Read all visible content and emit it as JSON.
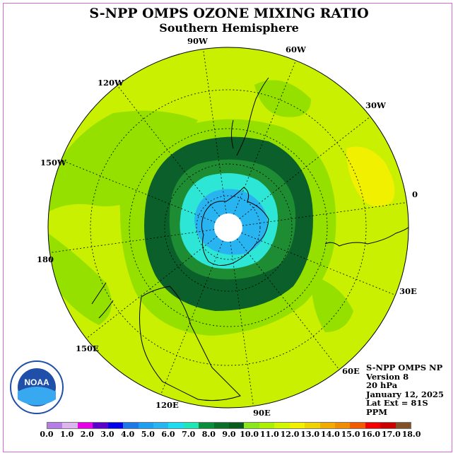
{
  "title": "S-NPP OMPS OZONE MIXING RATIO",
  "subtitle": "Southern Hemisphere",
  "longitude_labels": {
    "w90": "90W",
    "w60": "60W",
    "w30": "30W",
    "e0": "0",
    "e30": "30E",
    "e60": "60E",
    "e90": "90E",
    "e120": "120E",
    "e150": "150E",
    "d180": "180",
    "w150": "150W",
    "w120": "120W"
  },
  "info": {
    "instrument": "S-NPP OMPS NP",
    "version": "Version 8",
    "level": "20 hPa",
    "date": "January 12, 2025",
    "lat_ext": "Lat Ext = 81S",
    "unit": "PPM"
  },
  "logo": {
    "text": "NOAA",
    "icon": "noaa-logo"
  },
  "colorbar": {
    "colors": [
      "#b57ee6",
      "#dcb4ee",
      "#e600e6",
      "#5a00c8",
      "#0000e6",
      "#1e78e6",
      "#1e9ef0",
      "#28b4f0",
      "#1edcf0",
      "#1ee6b4",
      "#0a8c3c",
      "#0a6e28",
      "#0a5a1e",
      "#8ce61e",
      "#aaf000",
      "#d2f500",
      "#f0f000",
      "#f0d200",
      "#f0aa00",
      "#f08c00",
      "#f05a00",
      "#f00000",
      "#c80000",
      "#825028"
    ],
    "labels": [
      "0.0",
      "1.0",
      "2.0",
      "3.0",
      "4.0",
      "5.0",
      "6.0",
      "7.0",
      "8.0",
      "9.0",
      "10.0",
      "11.0",
      "12.0",
      "13.0",
      "14.0",
      "15.0",
      "16.0",
      "17.0",
      "18.0"
    ]
  },
  "map_colors": {
    "background": "#c8f000",
    "ring_light": "#96e000",
    "ring_green": "#1e8c32",
    "ring_dark": "#0a5f2a",
    "ring_cyan": "#2ee6d6",
    "ring_blue": "#28b4f0",
    "yellow_patch": "#f0f000",
    "pole": "#ffffff"
  }
}
